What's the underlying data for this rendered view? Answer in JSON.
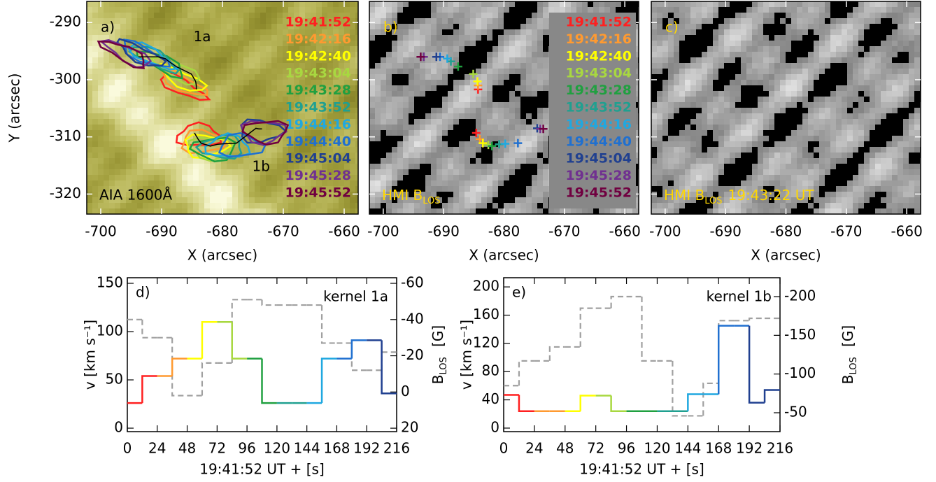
{
  "chart_data": [
    {
      "type": "image",
      "panel_label": "a)",
      "instrument": "AIA 1600Å",
      "style": "aia",
      "xlim": [
        -702.3,
        -657.7
      ],
      "ylim": [
        -323.5,
        -286.3
      ],
      "xticks": [
        -700,
        -690,
        -680,
        -670,
        -660
      ],
      "yticks": [
        -320,
        -310,
        -300,
        -290
      ],
      "xlabel": "X (arcsec)",
      "ylabel": "Y (arcsec)",
      "times": [
        {
          "label": "19:41:52",
          "color": "#ff2020"
        },
        {
          "label": "19:42:16",
          "color": "#ff9a30"
        },
        {
          "label": "19:42:40",
          "color": "#ffff00"
        },
        {
          "label": "19:43:04",
          "color": "#a8d840"
        },
        {
          "label": "19:43:28",
          "color": "#20a040"
        },
        {
          "label": "19:43:52",
          "color": "#20a090"
        },
        {
          "label": "19:44:16",
          "color": "#20a8e0"
        },
        {
          "label": "19:44:40",
          "color": "#2070d0"
        },
        {
          "label": "19:45:04",
          "color": "#204090"
        },
        {
          "label": "19:45:28",
          "color": "#703090"
        },
        {
          "label": "19:45:52",
          "color": "#700040"
        }
      ],
      "kernels": [
        {
          "label": "1a",
          "x": [
            -684.3,
            -684.3,
            -684.4,
            -685.1,
            -687.6,
            -688.8,
            -689.4,
            -690.6,
            -691.2,
            -693.3,
            -693.8
          ],
          "y": [
            -301.7,
            -301.0,
            -300.3,
            -299.0,
            -297.7,
            -296.8,
            -296.3,
            -296.0,
            -296.0,
            -296.0,
            -296.0
          ]
        },
        {
          "label": "1b",
          "x": [
            -684.6,
            -684.0,
            -683.5,
            -682.6,
            -682.0,
            -680.8,
            -679.8,
            -677.7,
            -674.5,
            -674.0,
            -673.5
          ],
          "y": [
            -309.3,
            -310.4,
            -311.1,
            -311.4,
            -311.6,
            -311.3,
            -311.2,
            -311.1,
            -308.5,
            -308.6,
            -308.6
          ]
        }
      ]
    },
    {
      "type": "image",
      "panel_label": "b)",
      "instrument": {
        "base": "HMI B",
        "sub": "LOS"
      },
      "style": "hmi",
      "xlim": [
        -702.3,
        -657.7
      ],
      "ylim": [
        -323.5,
        -286.3
      ],
      "xticks": [
        -700,
        -690,
        -680,
        -670,
        -660
      ],
      "yticks": [
        -320,
        -310,
        -300,
        -290
      ],
      "xlabel": "X (arcsec)",
      "times": [
        {
          "label": "19:41:52",
          "color": "#ff2020"
        },
        {
          "label": "19:42:16",
          "color": "#ff9a30"
        },
        {
          "label": "19:42:40",
          "color": "#ffff00"
        },
        {
          "label": "19:43:04",
          "color": "#a8d840"
        },
        {
          "label": "19:43:28",
          "color": "#20a040"
        },
        {
          "label": "19:43:52",
          "color": "#20a090"
        },
        {
          "label": "19:44:16",
          "color": "#20a8e0"
        },
        {
          "label": "19:44:40",
          "color": "#2070d0"
        },
        {
          "label": "19:45:04",
          "color": "#204090"
        },
        {
          "label": "19:45:28",
          "color": "#703090"
        },
        {
          "label": "19:45:52",
          "color": "#700040"
        }
      ]
    },
    {
      "type": "image",
      "panel_label": "c)",
      "instrument": {
        "base": "HMI B",
        "sub": "LOS",
        "rest": "19:43:22 UT"
      },
      "style": "hmi",
      "xlim": [
        -702.3,
        -657.7
      ],
      "ylim": [
        -323.5,
        -286.3
      ],
      "xticks": [
        -700,
        -690,
        -680,
        -670,
        -660
      ],
      "yticks": [
        -320,
        -310,
        -300,
        -290
      ],
      "xlabel": "X (arcsec)"
    },
    {
      "type": "step",
      "panel_label": "d)",
      "annotation": "kernel 1a",
      "xlim": [
        0,
        216
      ],
      "xticks": [
        0,
        24,
        48,
        72,
        96,
        120,
        144,
        168,
        192,
        216
      ],
      "xlabel": "19:41:52 UT + [s]",
      "ylim": [
        -3.6,
        155.8
      ],
      "yticks": [
        0,
        50,
        100,
        150
      ],
      "ylabel": "v [km s⁻¹]",
      "y2lim": [
        21.9,
        -63.1
      ],
      "y2ticks": [
        20,
        0,
        -20,
        -40,
        -60
      ],
      "y2label": {
        "base": "B",
        "sub": "LOS",
        "rest": " [G]"
      },
      "x": [
        0,
        12,
        24,
        36,
        48,
        60,
        72,
        84,
        96,
        108,
        120,
        132,
        144,
        156,
        168,
        180,
        192,
        204
      ],
      "series": [
        {
          "values": [
            26,
            54,
            54,
            72,
            72,
            110,
            110,
            72,
            72,
            26,
            26,
            26,
            26,
            72,
            72,
            91,
            91,
            36
          ]
        },
        {
          "axis": "y2",
          "color": "#a0a0a0",
          "dashed": true,
          "values": [
            -40,
            -30,
            -30,
            2,
            2,
            -16,
            -16,
            -51,
            -51,
            -48,
            -48,
            -48,
            -48,
            -27,
            -27,
            -12,
            -12,
            -22
          ]
        }
      ]
    },
    {
      "type": "step",
      "panel_label": "e)",
      "annotation": "kernel 1b",
      "xlim": [
        0,
        216
      ],
      "xticks": [
        0,
        24,
        48,
        72,
        96,
        120,
        144,
        168,
        192,
        216
      ],
      "xlabel": "19:41:52 UT + [s]",
      "ylim": [
        -5,
        213
      ],
      "yticks": [
        0,
        40,
        80,
        120,
        160,
        200
      ],
      "ylabel": "v [km s⁻¹]",
      "y2lim": [
        -25.6,
        -224.4
      ],
      "y2ticks": [
        -50,
        -100,
        -150,
        -200
      ],
      "y2label": {
        "base": "B",
        "sub": "LOS",
        "rest": " [G]"
      },
      "x": [
        0,
        12,
        24,
        36,
        48,
        60,
        72,
        84,
        96,
        108,
        120,
        132,
        144,
        156,
        168,
        180,
        192,
        204
      ],
      "series": [
        {
          "values": [
            47,
            24,
            24,
            24,
            24,
            46,
            46,
            24,
            24,
            24,
            24,
            24,
            48,
            48,
            145,
            145,
            36,
            54
          ]
        },
        {
          "axis": "y2",
          "color": "#a0a0a0",
          "dashed": true,
          "values": [
            -85,
            -117,
            -117,
            -135,
            -135,
            -185,
            -185,
            -200,
            -200,
            -117,
            -117,
            -46,
            -46,
            -88,
            -169,
            -169,
            -172,
            -172
          ]
        }
      ]
    }
  ]
}
